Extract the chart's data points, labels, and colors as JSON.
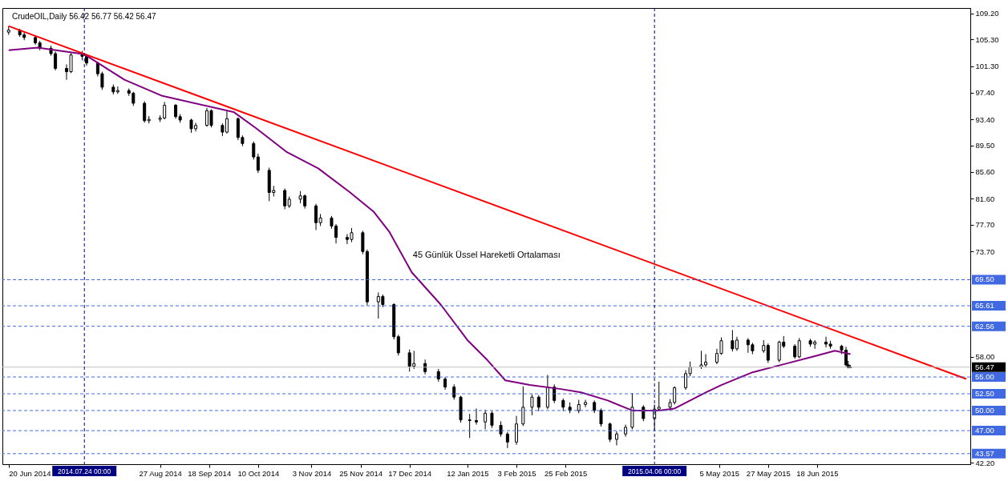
{
  "chart_data": {
    "type": "candlestick",
    "title": "CrudeOIL,Daily  56.42 56.77 56.42 56.47",
    "x": [
      "2014-06-20",
      "2014-06-25",
      "2014-06-27",
      "2014-07-02",
      "2014-07-04",
      "2014-07-09",
      "2014-07-11",
      "2014-07-16",
      "2014-07-18",
      "2014-07-23",
      "2014-07-25",
      "2014-07-30",
      "2014-08-01",
      "2014-08-06",
      "2014-08-08",
      "2014-08-13",
      "2014-08-15",
      "2014-08-20",
      "2014-08-22",
      "2014-08-27",
      "2014-08-29",
      "2014-09-03",
      "2014-09-05",
      "2014-09-10",
      "2014-09-12",
      "2014-09-17",
      "2014-09-19",
      "2014-09-24",
      "2014-09-26",
      "2014-10-01",
      "2014-10-03",
      "2014-10-08",
      "2014-10-10",
      "2014-10-15",
      "2014-10-17",
      "2014-10-22",
      "2014-10-24",
      "2014-10-29",
      "2014-10-31",
      "2014-11-05",
      "2014-11-07",
      "2014-11-12",
      "2014-11-14",
      "2014-11-19",
      "2014-11-21",
      "2014-11-26",
      "2014-11-28",
      "2014-12-03",
      "2014-12-05",
      "2014-12-10",
      "2014-12-12",
      "2014-12-17",
      "2014-12-19",
      "2014-12-24",
      "2014-12-30",
      "2015-01-02",
      "2015-01-06",
      "2015-01-09",
      "2015-01-13",
      "2015-01-16",
      "2015-01-20",
      "2015-01-23",
      "2015-01-27",
      "2015-01-30",
      "2015-02-03",
      "2015-02-06",
      "2015-02-10",
      "2015-02-13",
      "2015-02-17",
      "2015-02-20",
      "2015-02-24",
      "2015-02-27",
      "2015-03-03",
      "2015-03-06",
      "2015-03-10",
      "2015-03-13",
      "2015-03-17",
      "2015-03-20",
      "2015-03-24",
      "2015-03-27",
      "2015-04-01",
      "2015-04-06",
      "2015-04-08",
      "2015-04-13",
      "2015-04-15",
      "2015-04-20",
      "2015-04-22",
      "2015-04-27",
      "2015-04-29",
      "2015-05-04",
      "2015-05-06",
      "2015-05-11",
      "2015-05-13",
      "2015-05-18",
      "2015-05-20",
      "2015-05-25",
      "2015-05-27",
      "2015-06-01",
      "2015-06-03",
      "2015-06-08",
      "2015-06-10",
      "2015-06-15",
      "2015-06-17",
      "2015-06-22",
      "2015-06-24",
      "2015-06-29",
      "2015-07-01",
      "2015-07-02",
      "2015-07-03"
    ],
    "ohlc": [
      [
        106.4,
        107.3,
        106.0,
        106.7
      ],
      [
        106.7,
        106.9,
        105.7,
        106.0
      ],
      [
        106.0,
        106.4,
        105.2,
        105.6
      ],
      [
        105.6,
        105.9,
        104.5,
        104.8
      ],
      [
        104.8,
        105.1,
        103.7,
        104.0
      ],
      [
        104.0,
        104.4,
        102.9,
        103.2
      ],
      [
        103.2,
        103.5,
        100.7,
        101.0
      ],
      [
        101.0,
        101.6,
        99.3,
        100.5
      ],
      [
        100.5,
        103.4,
        100.3,
        103.0
      ],
      [
        103.0,
        103.6,
        102.2,
        102.8
      ],
      [
        102.8,
        103.1,
        101.4,
        101.8
      ],
      [
        101.8,
        102.0,
        99.8,
        100.2
      ],
      [
        100.2,
        100.5,
        97.8,
        98.2
      ],
      [
        98.2,
        98.6,
        97.1,
        97.5
      ],
      [
        97.5,
        98.3,
        97.2,
        97.7
      ],
      [
        97.7,
        98.0,
        96.9,
        97.3
      ],
      [
        97.3,
        97.5,
        95.4,
        95.8
      ],
      [
        95.8,
        96.1,
        92.9,
        93.2
      ],
      [
        93.2,
        93.9,
        92.8,
        93.4
      ],
      [
        93.4,
        94.0,
        93.0,
        93.6
      ],
      [
        93.6,
        96.0,
        93.4,
        95.5
      ],
      [
        95.5,
        95.7,
        93.5,
        93.8
      ],
      [
        93.8,
        94.2,
        92.9,
        93.3
      ],
      [
        93.3,
        93.5,
        91.4,
        92.0
      ],
      [
        92.0,
        92.9,
        91.6,
        92.5
      ],
      [
        92.5,
        95.1,
        92.3,
        94.7
      ],
      [
        94.7,
        94.9,
        92.2,
        92.5
      ],
      [
        92.5,
        92.8,
        90.9,
        91.5
      ],
      [
        91.5,
        94.6,
        91.3,
        93.5
      ],
      [
        93.5,
        93.7,
        90.3,
        90.7
      ],
      [
        90.7,
        91.0,
        89.4,
        89.8
      ],
      [
        89.8,
        90.1,
        87.4,
        87.8
      ],
      [
        87.8,
        88.3,
        85.4,
        85.8
      ],
      [
        85.8,
        86.2,
        81.2,
        82.5
      ],
      [
        82.5,
        83.5,
        81.9,
        82.8
      ],
      [
        82.8,
        83.1,
        80.0,
        80.5
      ],
      [
        80.5,
        81.9,
        80.2,
        81.5
      ],
      [
        81.5,
        82.7,
        80.9,
        82.0
      ],
      [
        82.0,
        82.2,
        80.1,
        80.5
      ],
      [
        80.5,
        80.8,
        76.9,
        78.0
      ],
      [
        78.0,
        79.3,
        77.5,
        78.7
      ],
      [
        78.7,
        79.0,
        77.1,
        77.5
      ],
      [
        77.5,
        77.8,
        74.9,
        75.8
      ],
      [
        75.8,
        76.3,
        74.8,
        75.5
      ],
      [
        75.5,
        77.2,
        75.1,
        76.5
      ],
      [
        76.5,
        76.8,
        73.3,
        73.7
      ],
      [
        73.7,
        74.0,
        65.7,
        66.2
      ],
      [
        66.2,
        67.6,
        63.7,
        67.0
      ],
      [
        67.0,
        67.3,
        65.4,
        65.8
      ],
      [
        65.8,
        66.0,
        60.6,
        61.0
      ],
      [
        61.0,
        61.3,
        58.2,
        58.6
      ],
      [
        58.6,
        59.1,
        55.8,
        56.6
      ],
      [
        56.6,
        58.9,
        56.2,
        57.0
      ],
      [
        57.0,
        57.6,
        55.4,
        55.8
      ],
      [
        55.8,
        56.2,
        54.3,
        54.7
      ],
      [
        54.7,
        55.0,
        53.1,
        53.5
      ],
      [
        53.5,
        53.9,
        51.6,
        52.0
      ],
      [
        52.0,
        52.2,
        48.2,
        48.6
      ],
      [
        48.6,
        49.5,
        45.9,
        48.5
      ],
      [
        48.5,
        50.3,
        47.9,
        48.3
      ],
      [
        48.3,
        50.1,
        47.2,
        49.6
      ],
      [
        49.6,
        49.9,
        47.4,
        47.8
      ],
      [
        47.8,
        48.4,
        46.1,
        46.5
      ],
      [
        46.5,
        46.8,
        44.4,
        45.3
      ],
      [
        45.3,
        49.2,
        44.9,
        48.0
      ],
      [
        48.0,
        53.6,
        47.7,
        50.5
      ],
      [
        50.5,
        52.4,
        49.3,
        52.0
      ],
      [
        52.0,
        52.3,
        49.9,
        50.5
      ],
      [
        50.5,
        55.3,
        50.2,
        53.5
      ],
      [
        53.5,
        53.9,
        51.1,
        51.5
      ],
      [
        51.5,
        51.8,
        49.9,
        50.5
      ],
      [
        50.5,
        51.2,
        49.6,
        50.0
      ],
      [
        50.0,
        51.6,
        49.6,
        50.9
      ],
      [
        50.9,
        51.6,
        50.5,
        51.2
      ],
      [
        51.2,
        51.5,
        49.6,
        50.0
      ],
      [
        50.0,
        50.3,
        47.6,
        48.0
      ],
      [
        48.0,
        48.2,
        45.3,
        45.7
      ],
      [
        45.7,
        46.9,
        44.8,
        46.5
      ],
      [
        46.5,
        47.9,
        46.1,
        47.5
      ],
      [
        47.5,
        52.6,
        47.2,
        50.5
      ],
      [
        50.5,
        50.8,
        48.4,
        48.8
      ],
      [
        48.8,
        50.9,
        47.1,
        50.2
      ],
      [
        50.2,
        54.3,
        50.0,
        50.5
      ],
      [
        50.5,
        51.7,
        50.0,
        51.2
      ],
      [
        51.2,
        53.6,
        50.9,
        53.4
      ],
      [
        53.4,
        56.0,
        53.1,
        55.5
      ],
      [
        55.5,
        57.3,
        55.1,
        56.5
      ],
      [
        56.5,
        58.9,
        56.2,
        56.8
      ],
      [
        56.8,
        58.4,
        56.4,
        57.2
      ],
      [
        57.2,
        59.2,
        56.9,
        58.5
      ],
      [
        58.5,
        60.9,
        58.3,
        60.4
      ],
      [
        60.4,
        62.0,
        58.8,
        59.2
      ],
      [
        59.2,
        61.0,
        58.9,
        60.5
      ],
      [
        60.5,
        60.8,
        58.6,
        59.8
      ],
      [
        59.8,
        60.1,
        58.4,
        58.9
      ],
      [
        58.9,
        60.5,
        58.6,
        59.7
      ],
      [
        59.7,
        60.0,
        57.1,
        57.5
      ],
      [
        57.5,
        60.4,
        57.2,
        60.2
      ],
      [
        60.2,
        61.1,
        59.3,
        59.6
      ],
      [
        59.6,
        59.9,
        57.7,
        58.0
      ],
      [
        58.0,
        60.8,
        57.8,
        60.4
      ],
      [
        60.4,
        60.7,
        59.5,
        59.9
      ],
      [
        59.9,
        60.5,
        59.2,
        60.2
      ],
      [
        60.2,
        61.0,
        59.4,
        59.9
      ],
      [
        59.9,
        60.4,
        59.2,
        59.6
      ],
      [
        59.6,
        59.8,
        58.4,
        59.0
      ],
      [
        59.0,
        59.5,
        56.6,
        56.8
      ],
      [
        56.8,
        57.4,
        56.3,
        56.4
      ],
      [
        56.42,
        56.77,
        56.42,
        56.47
      ]
    ],
    "series": [
      {
        "type": "line",
        "color": "#800080",
        "x": [
          "2014-06-20",
          "2014-07-03",
          "2014-07-24",
          "2014-08-11",
          "2014-08-28",
          "2014-09-29",
          "2014-10-09",
          "2014-10-23",
          "2014-11-06",
          "2014-11-20",
          "2014-12-01",
          "2014-12-08",
          "2014-12-18",
          "2014-12-31",
          "2015-01-12",
          "2015-01-21",
          "2015-01-29",
          "2015-02-09",
          "2015-02-23",
          "2015-03-04",
          "2015-03-16",
          "2015-03-27",
          "2015-04-08",
          "2015-04-15",
          "2015-04-29",
          "2015-05-06",
          "2015-05-20",
          "2015-06-03",
          "2015-06-17",
          "2015-06-26",
          "2015-07-03"
        ],
        "values": [
          103.7,
          104.1,
          103.1,
          99.3,
          96.9,
          94.5,
          92.1,
          88.5,
          86.1,
          82.6,
          79.6,
          76.6,
          70.6,
          65.8,
          60.5,
          57.5,
          54.5,
          53.8,
          53.2,
          52.7,
          51.5,
          50.0,
          50.0,
          50.3,
          52.7,
          53.8,
          55.7,
          56.9,
          58.1,
          58.9,
          58.4
        ]
      },
      {
        "type": "line",
        "color": "#ff0000",
        "x": [
          "2014-06-20",
          "2015-08-24"
        ],
        "values": [
          107.3,
          54.7
        ]
      }
    ],
    "xlim": [
      "2014-06-19",
      "2015-08-24"
    ],
    "ylim": [
      42.0,
      110.0
    ],
    "xticks": [
      {
        "value": "2014-06-20",
        "label": "20 Jun 2014"
      },
      {
        "value": "2014-08-27",
        "label": "27 Aug 2014"
      },
      {
        "value": "2014-09-18",
        "label": "18 Sep 2014"
      },
      {
        "value": "2014-10-10",
        "label": "10 Oct 2014"
      },
      {
        "value": "2014-11-03",
        "label": "3 Nov 2014"
      },
      {
        "value": "2014-11-25",
        "label": "25 Nov 2014"
      },
      {
        "value": "2014-12-17",
        "label": "17 Dec 2014"
      },
      {
        "value": "2015-01-12",
        "label": "12 Jan 2015"
      },
      {
        "value": "2015-02-03",
        "label": "3 Feb 2015"
      },
      {
        "value": "2015-02-25",
        "label": "25 Feb 2015"
      },
      {
        "value": "2015-05-05",
        "label": "5 May 2015"
      },
      {
        "value": "2015-05-27",
        "label": "27 May 2015"
      },
      {
        "value": "2015-06-18",
        "label": "18 Jun 2015"
      }
    ],
    "yticks": [
      {
        "value": 109.2,
        "label": "109.20"
      },
      {
        "value": 105.3,
        "label": "105.30"
      },
      {
        "value": 101.3,
        "label": "101.30"
      },
      {
        "value": 97.4,
        "label": "97.40"
      },
      {
        "value": 93.4,
        "label": "93.40"
      },
      {
        "value": 89.5,
        "label": "89.50"
      },
      {
        "value": 85.6,
        "label": "85.60"
      },
      {
        "value": 81.6,
        "label": "81.60"
      },
      {
        "value": 77.7,
        "label": "77.70"
      },
      {
        "value": 73.7,
        "label": "73.70"
      },
      {
        "value": 58.0,
        "label": "58.00"
      },
      {
        "value": 42.2,
        "label": "42.20"
      }
    ],
    "ref_lines": [
      {
        "axis": "y",
        "value": 69.5,
        "label": "69.50",
        "color": "#4169e1",
        "line_style": "dashed"
      },
      {
        "axis": "y",
        "value": 65.61,
        "label": "65.61",
        "color": "#4169e1",
        "line_style": "dashed"
      },
      {
        "axis": "y",
        "value": 62.56,
        "label": "62.56",
        "color": "#4169e1",
        "line_style": "dashed"
      },
      {
        "axis": "y",
        "value": 56.47,
        "label": "56.47",
        "color": "#c0c0c0",
        "line_style": "solid"
      },
      {
        "axis": "y",
        "value": 55.0,
        "label": "55.00",
        "color": "#4169e1",
        "line_style": "dashed"
      },
      {
        "axis": "y",
        "value": 52.5,
        "label": "52.50",
        "color": "#4169e1",
        "line_style": "dashed"
      },
      {
        "axis": "y",
        "value": 50.0,
        "label": "50.00",
        "color": "#4169e1",
        "line_style": "dashed"
      },
      {
        "axis": "y",
        "value": 47.0,
        "label": "47.00",
        "color": "#4169e1",
        "line_style": "dashed"
      },
      {
        "axis": "y",
        "value": 43.57,
        "label": "43.57",
        "color": "#4169e1",
        "line_style": "dashed"
      },
      {
        "axis": "x",
        "value": "2014-07-24",
        "label": "2014.07.24 00:00",
        "color": "#000080",
        "line_style": "dashed"
      },
      {
        "axis": "x",
        "value": "2015-04-06",
        "label": "2015.04.06 00:00",
        "color": "#000080",
        "line_style": "dashed"
      }
    ],
    "annotations": [
      "45 Günlük Üssel Hareketli Ortalaması"
    ]
  }
}
